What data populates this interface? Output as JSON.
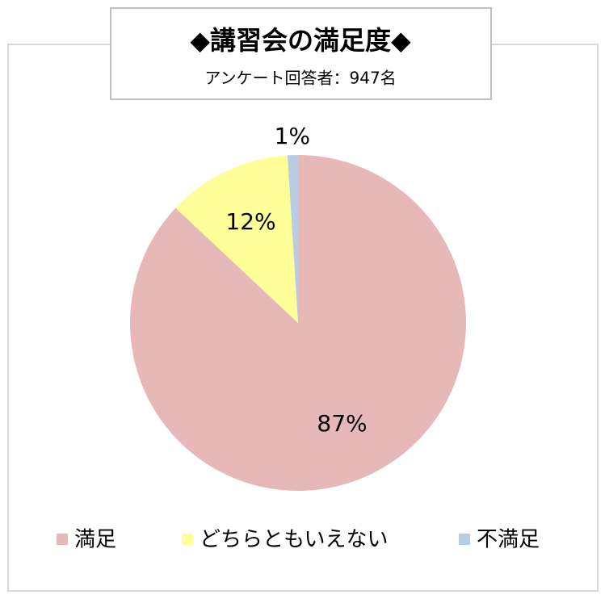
{
  "chart_data": {
    "type": "pie",
    "title": "◆講習会の満足度◆",
    "subtitle": "アンケート回答者：947名",
    "categories": [
      "満足",
      "どちらともいえない",
      "不満足"
    ],
    "values": [
      87,
      12,
      1
    ],
    "value_labels": [
      "87%",
      "12%",
      "1%"
    ],
    "colors": [
      "#e6b8b7",
      "#ffff99",
      "#b8cce4"
    ],
    "legend": "bottom"
  }
}
